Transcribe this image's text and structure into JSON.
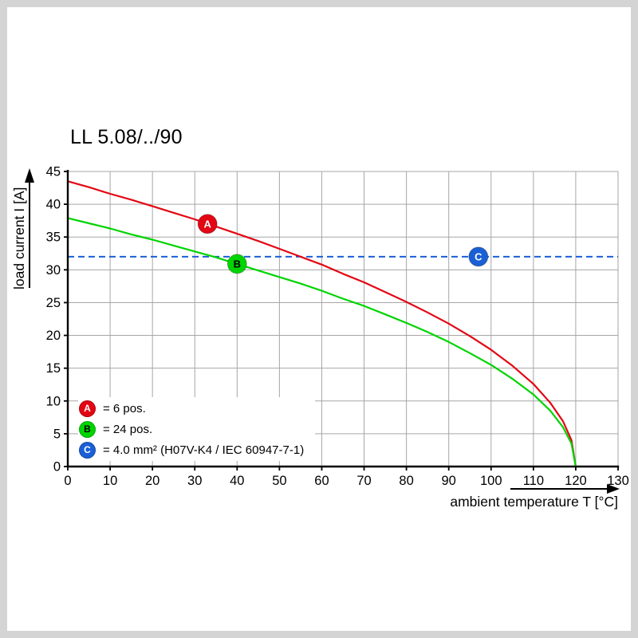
{
  "chart_data": {
    "type": "line",
    "title": "LL 5.08/../90",
    "xlabel": "ambient temperature T [°C]",
    "ylabel": "load current I [A]",
    "xlim": [
      0,
      130
    ],
    "ylim": [
      0,
      45
    ],
    "x_ticks": [
      0,
      10,
      20,
      30,
      40,
      50,
      60,
      70,
      80,
      90,
      100,
      110,
      120,
      130
    ],
    "y_ticks": [
      0,
      5,
      10,
      15,
      20,
      25,
      30,
      35,
      40,
      45
    ],
    "grid": true,
    "grid_color": "#a6a6a6",
    "legend_position": "lower-left",
    "series": [
      {
        "name": "A",
        "legend_label": "= 6 pos.",
        "color": "#e30613",
        "marker_text_color": "#ffffff",
        "marker_at": {
          "x": 33,
          "y": 37.0
        },
        "points": [
          [
            0,
            43.5
          ],
          [
            5,
            42.6
          ],
          [
            10,
            41.6
          ],
          [
            15,
            40.7
          ],
          [
            20,
            39.7
          ],
          [
            25,
            38.7
          ],
          [
            30,
            37.7
          ],
          [
            35,
            36.6
          ],
          [
            40,
            35.5
          ],
          [
            45,
            34.4
          ],
          [
            50,
            33.2
          ],
          [
            55,
            32.0
          ],
          [
            60,
            30.8
          ],
          [
            65,
            29.4
          ],
          [
            70,
            28.1
          ],
          [
            75,
            26.6
          ],
          [
            80,
            25.1
          ],
          [
            85,
            23.5
          ],
          [
            90,
            21.8
          ],
          [
            95,
            19.9
          ],
          [
            100,
            17.8
          ],
          [
            105,
            15.4
          ],
          [
            110,
            12.6
          ],
          [
            114,
            9.7
          ],
          [
            117,
            6.9
          ],
          [
            119,
            4.0
          ],
          [
            120,
            0
          ]
        ]
      },
      {
        "name": "B",
        "legend_label": "= 24 pos.",
        "color": "#00d400",
        "marker_text_color": "#000000",
        "marker_at": {
          "x": 40,
          "y": 30.9
        },
        "points": [
          [
            0,
            37.9
          ],
          [
            5,
            37.1
          ],
          [
            10,
            36.3
          ],
          [
            15,
            35.4
          ],
          [
            20,
            34.6
          ],
          [
            25,
            33.7
          ],
          [
            30,
            32.8
          ],
          [
            35,
            31.9
          ],
          [
            40,
            30.9
          ],
          [
            45,
            29.9
          ],
          [
            50,
            28.9
          ],
          [
            55,
            27.9
          ],
          [
            60,
            26.8
          ],
          [
            65,
            25.6
          ],
          [
            70,
            24.5
          ],
          [
            75,
            23.2
          ],
          [
            80,
            21.9
          ],
          [
            85,
            20.5
          ],
          [
            90,
            19.0
          ],
          [
            95,
            17.3
          ],
          [
            100,
            15.5
          ],
          [
            105,
            13.4
          ],
          [
            110,
            11.0
          ],
          [
            114,
            8.5
          ],
          [
            117,
            6.0
          ],
          [
            119,
            3.5
          ],
          [
            120,
            0
          ]
        ]
      }
    ],
    "reference_line": {
      "name": "C",
      "legend_label": "= 4.0 mm² (H07V-K4 / IEC 60947-7-1)",
      "color": "#1a5fd6",
      "style": "dashed",
      "y": 32,
      "marker_at": {
        "x": 97,
        "y": 32
      },
      "marker_text_color": "#ffffff"
    }
  }
}
